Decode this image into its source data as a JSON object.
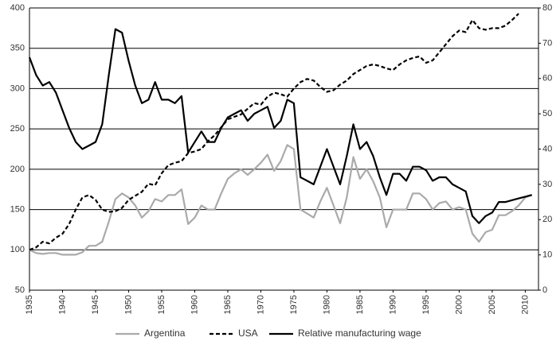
{
  "chart_data": {
    "type": "line",
    "x": [
      1935,
      1936,
      1937,
      1938,
      1939,
      1940,
      1941,
      1942,
      1943,
      1944,
      1945,
      1946,
      1947,
      1948,
      1949,
      1950,
      1951,
      1952,
      1953,
      1954,
      1955,
      1956,
      1957,
      1958,
      1959,
      1960,
      1961,
      1962,
      1963,
      1964,
      1965,
      1966,
      1967,
      1968,
      1969,
      1970,
      1971,
      1972,
      1973,
      1974,
      1975,
      1976,
      1977,
      1978,
      1979,
      1980,
      1981,
      1982,
      1983,
      1984,
      1985,
      1986,
      1987,
      1988,
      1989,
      1990,
      1991,
      1992,
      1993,
      1994,
      1995,
      1996,
      1997,
      1998,
      1999,
      2000,
      2001,
      2002,
      2003,
      2004,
      2005,
      2006,
      2007,
      2008,
      2009,
      2010,
      2011
    ],
    "series": [
      {
        "name": "Argentina",
        "color": "#aaaaaa",
        "style": "solid",
        "axis": "y",
        "values": [
          100,
          96,
          95,
          96,
          96,
          94,
          94,
          94,
          97,
          105,
          105,
          110,
          135,
          163,
          170,
          165,
          155,
          140,
          148,
          163,
          160,
          168,
          168,
          175,
          132,
          140,
          155,
          150,
          150,
          170,
          188,
          195,
          200,
          193,
          200,
          208,
          218,
          198,
          210,
          230,
          225,
          150,
          145,
          140,
          160,
          177,
          155,
          133,
          165,
          215,
          188,
          200,
          185,
          165,
          128,
          150,
          150,
          150,
          170,
          170,
          163,
          150,
          158,
          160,
          150,
          153,
          150,
          120,
          110,
          122,
          125,
          143,
          143,
          148,
          155,
          165,
          168
        ]
      },
      {
        "name": "USA",
        "color": "#000000",
        "style": "dashed",
        "axis": "y",
        "values": [
          100,
          103,
          110,
          108,
          115,
          120,
          132,
          150,
          165,
          168,
          162,
          150,
          147,
          148,
          152,
          162,
          167,
          172,
          182,
          180,
          195,
          205,
          208,
          210,
          220,
          222,
          225,
          235,
          242,
          252,
          262,
          265,
          268,
          275,
          282,
          280,
          290,
          295,
          293,
          290,
          300,
          308,
          312,
          310,
          302,
          296,
          298,
          305,
          310,
          318,
          323,
          328,
          330,
          328,
          325,
          323,
          330,
          335,
          338,
          340,
          332,
          335,
          345,
          355,
          365,
          372,
          370,
          385,
          375,
          373,
          375,
          375,
          378,
          385,
          393,
          null,
          null
        ]
      },
      {
        "name": "Relative manufacturing wage",
        "color": "#000000",
        "style": "solid",
        "axis": "y2",
        "values": [
          66,
          61,
          58,
          59,
          56,
          51,
          46,
          42,
          40,
          41,
          42,
          47,
          61,
          74,
          73,
          65,
          58,
          53,
          54,
          59,
          54,
          54,
          53,
          55,
          39,
          42,
          45,
          42,
          42,
          46,
          49,
          50,
          51,
          48,
          50,
          51,
          52,
          46,
          48,
          54,
          53,
          32,
          31,
          30,
          35,
          40,
          35,
          30,
          38,
          47,
          40,
          42,
          38,
          32,
          27,
          33,
          33,
          31,
          35,
          35,
          34,
          31,
          32,
          32,
          30,
          29,
          28,
          21,
          19,
          21,
          22,
          25,
          25,
          25.5,
          26,
          26.5,
          27
        ]
      }
    ],
    "xlim": [
      1935,
      2012
    ],
    "xticks": [
      1935,
      1940,
      1945,
      1950,
      1955,
      1960,
      1965,
      1970,
      1975,
      1980,
      1985,
      1990,
      1995,
      2000,
      2005,
      2010
    ],
    "ylim": [
      50,
      400
    ],
    "yticks": [
      50,
      100,
      150,
      200,
      250,
      300,
      350,
      400
    ],
    "y2lim": [
      0,
      80
    ],
    "y2ticks": [
      0,
      10,
      20,
      30,
      40,
      50,
      60,
      70,
      80
    ],
    "grid": true,
    "legend": "bottom"
  }
}
